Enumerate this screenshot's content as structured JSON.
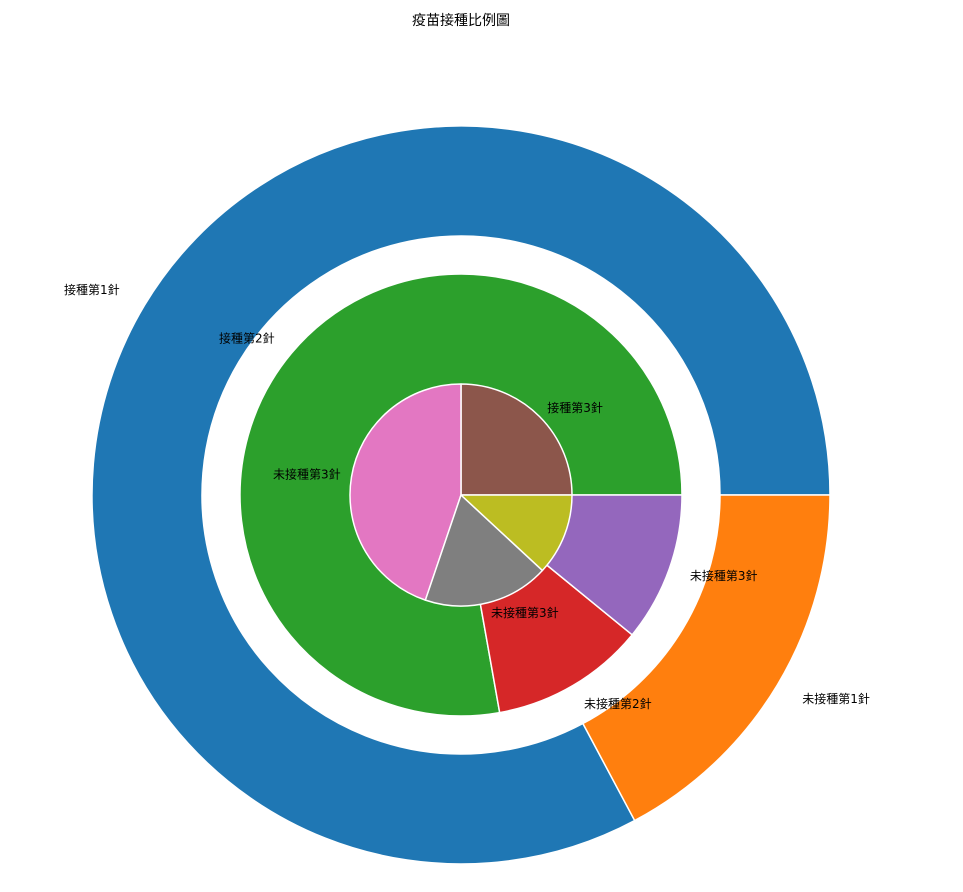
{
  "chart_data": {
    "type": "pie",
    "title": "疫苗接種比例圖",
    "rings": [
      {
        "name": "",
        "slices": [
          {
            "label": "接種第1針",
            "value": 82.8,
            "color": "#1f77b4"
          },
          {
            "label": "未接種第1針",
            "value": 17.2,
            "color": "#ff7f0e"
          }
        ]
      },
      {
        "name": "",
        "slices": [
          {
            "label": "接種第2針",
            "value": 77.8,
            "color": "#2ca02c"
          },
          {
            "label": "未接種第2針",
            "value": 11.3,
            "color": "#d62728"
          },
          {
            "label": "未接種第3針",
            "value": 10.9,
            "color": "#9467bd"
          }
        ]
      },
      {
        "name": "",
        "slices": [
          {
            "label": "接種第3針",
            "value": 25.0,
            "color": "#8c564b"
          },
          {
            "label": "未接種第3針",
            "value": 44.8,
            "color": "#e377c2"
          },
          {
            "label": "未接種第3針",
            "value": 18.3,
            "color": "#7f7f7f"
          },
          {
            "label": "",
            "value": 11.9,
            "color": "#bcbd22"
          }
        ]
      }
    ]
  }
}
